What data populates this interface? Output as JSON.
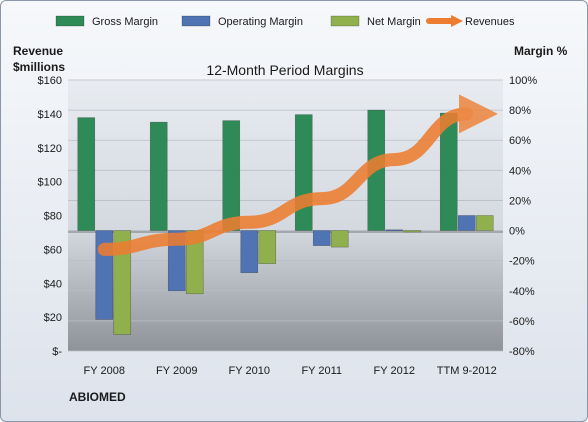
{
  "chart_data": {
    "type": "bar",
    "title": "12-Month Period Margins",
    "left_axis_title": [
      "Revenue",
      "$millions"
    ],
    "right_axis_title": "Margin %",
    "categories": [
      "FY 2008",
      "FY 2009",
      "FY 2010",
      "FY 2011",
      "FY 2012",
      "TTM 9-2012"
    ],
    "margin_series": [
      {
        "name": "Gross Margin",
        "color": "#2e8b57",
        "values": [
          75,
          72,
          73,
          77,
          80,
          78
        ]
      },
      {
        "name": "Operating Margin",
        "color": "#4f73b3",
        "values": [
          -59,
          -40,
          -28,
          -10,
          0.5,
          10
        ]
      },
      {
        "name": "Net Margin",
        "color": "#8fb04d",
        "values": [
          -69,
          -42,
          -22,
          -11,
          -1,
          10
        ]
      }
    ],
    "revenue_series": {
      "name": "Revenues",
      "color": "#ed7d31",
      "values": [
        60,
        66,
        76,
        90,
        113,
        140
      ]
    },
    "left_axis": {
      "min": 0,
      "max": 160,
      "step": 20,
      "tick_labels": [
        "$-",
        "$20",
        "$40",
        "$60",
        "$80",
        "$100",
        "$120",
        "$140",
        "$160"
      ]
    },
    "right_axis": {
      "min": -80,
      "max": 100,
      "step": 20,
      "tick_labels": [
        "-80%",
        "-60%",
        "-40%",
        "-20%",
        "0%",
        "20%",
        "40%",
        "60%",
        "80%",
        "100%"
      ]
    },
    "company": "ABIOMED",
    "legend_position": "top",
    "grid": true
  }
}
